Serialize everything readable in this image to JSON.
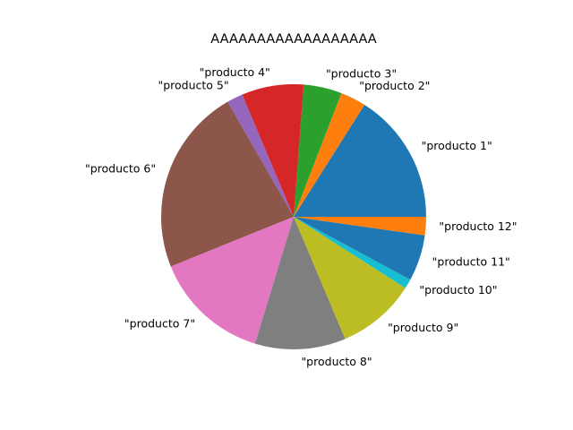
{
  "chart_data": {
    "type": "pie",
    "title": "AAAAAAAAAAAAAAAAAA",
    "start_angle_deg": 0,
    "direction": "counterclockwise",
    "slices": [
      {
        "label": "\"producto 1\"",
        "value": 16.5,
        "color": "#1f77b4"
      },
      {
        "label": "\"producto 2\"",
        "value": 3.2,
        "color": "#ff7f0e"
      },
      {
        "label": "\"producto 3\"",
        "value": 4.8,
        "color": "#2ca02c"
      },
      {
        "label": "\"producto 4\"",
        "value": 7.8,
        "color": "#d62728"
      },
      {
        "label": "\"producto 5\"",
        "value": 2.0,
        "color": "#9467bd"
      },
      {
        "label": "\"producto 6\"",
        "value": 23.5,
        "color": "#8c564b"
      },
      {
        "label": "\"producto 7\"",
        "value": 14.6,
        "color": "#e377c2"
      },
      {
        "label": "\"producto 8\"",
        "value": 11.4,
        "color": "#7f7f7f"
      },
      {
        "label": "\"producto 9\"",
        "value": 9.9,
        "color": "#bcbd22"
      },
      {
        "label": "\"producto 10\"",
        "value": 1.2,
        "color": "#17becf"
      },
      {
        "label": "\"producto 11\"",
        "value": 5.8,
        "color": "#1f77b4"
      },
      {
        "label": "\"producto 12\"",
        "value": 2.3,
        "color": "#ff7f0e"
      }
    ]
  }
}
